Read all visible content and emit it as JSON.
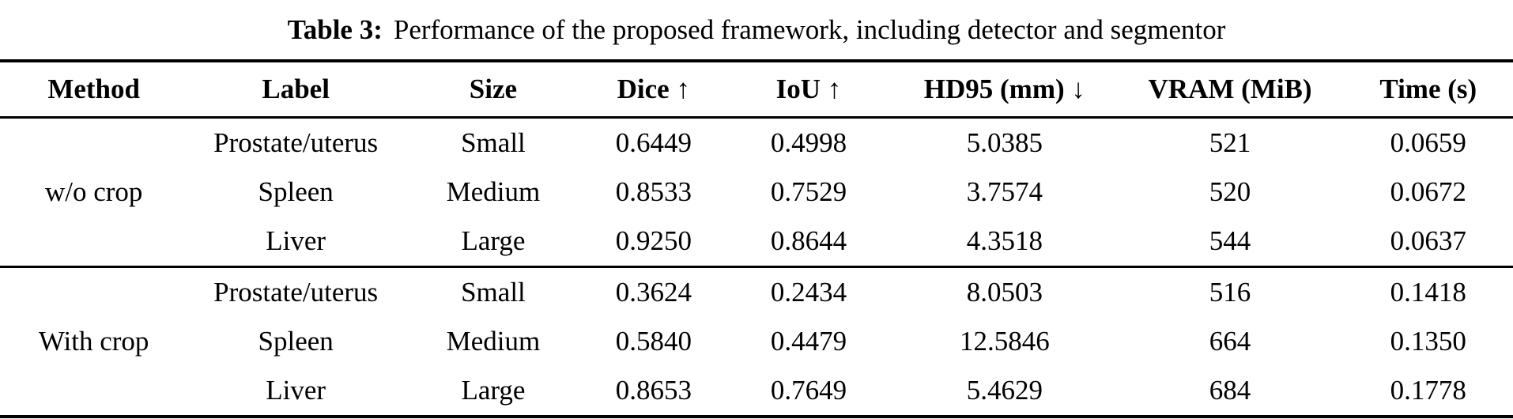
{
  "caption": {
    "label": "Table 3:",
    "text": "Performance of the proposed framework, including detector and segmentor"
  },
  "table": {
    "headers": [
      "Method",
      "Label",
      "Size",
      "Dice ↑",
      "IoU ↑",
      "HD95 (mm) ↓",
      "VRAM (MiB)",
      "Time (s)"
    ],
    "groups": [
      {
        "method": "w/o crop",
        "rows": [
          {
            "label": "Prostate/uterus",
            "size": "Small",
            "dice": "0.6449",
            "iou": "0.4998",
            "hd95": "5.0385",
            "vram": "521",
            "time": "0.0659"
          },
          {
            "label": "Spleen",
            "size": "Medium",
            "dice": "0.8533",
            "iou": "0.7529",
            "hd95": "3.7574",
            "vram": "520",
            "time": "0.0672"
          },
          {
            "label": "Liver",
            "size": "Large",
            "dice": "0.9250",
            "iou": "0.8644",
            "hd95": "4.3518",
            "vram": "544",
            "time": "0.0637"
          }
        ]
      },
      {
        "method": "With crop",
        "rows": [
          {
            "label": "Prostate/uterus",
            "size": "Small",
            "dice": "0.3624",
            "iou": "0.2434",
            "hd95": "8.0503",
            "vram": "516",
            "time": "0.1418"
          },
          {
            "label": "Spleen",
            "size": "Medium",
            "dice": "0.5840",
            "iou": "0.4479",
            "hd95": "12.5846",
            "vram": "664",
            "time": "0.1350"
          },
          {
            "label": "Liver",
            "size": "Large",
            "dice": "0.8653",
            "iou": "0.7649",
            "hd95": "5.4629",
            "vram": "684",
            "time": "0.1778"
          }
        ]
      }
    ]
  },
  "chart_data": {
    "type": "table",
    "title": "Table 3: Performance of the proposed framework, including detector and segmentor",
    "columns": [
      "Method",
      "Label",
      "Size",
      "Dice ↑",
      "IoU ↑",
      "HD95 (mm) ↓",
      "VRAM (MiB)",
      "Time (s)"
    ],
    "rows": [
      [
        "w/o crop",
        "Prostate/uterus",
        "Small",
        0.6449,
        0.4998,
        5.0385,
        521,
        0.0659
      ],
      [
        "w/o crop",
        "Spleen",
        "Medium",
        0.8533,
        0.7529,
        3.7574,
        520,
        0.0672
      ],
      [
        "w/o crop",
        "Liver",
        "Large",
        0.925,
        0.8644,
        4.3518,
        544,
        0.0637
      ],
      [
        "With crop",
        "Prostate/uterus",
        "Small",
        0.3624,
        0.2434,
        8.0503,
        516,
        0.1418
      ],
      [
        "With crop",
        "Spleen",
        "Medium",
        0.584,
        0.4479,
        12.5846,
        664,
        0.135
      ],
      [
        "With crop",
        "Liver",
        "Large",
        0.8653,
        0.7649,
        5.4629,
        684,
        0.1778
      ]
    ]
  }
}
